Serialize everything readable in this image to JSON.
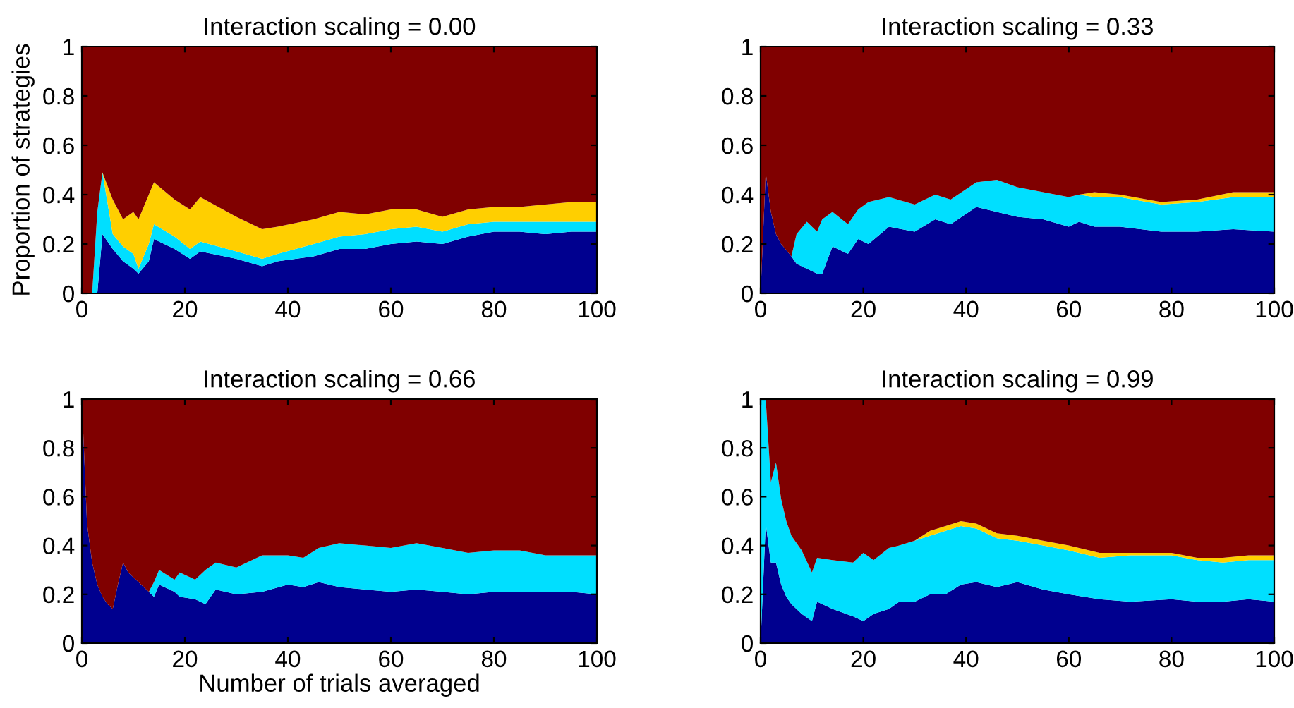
{
  "chart_data": [
    {
      "type": "area",
      "stacked": true,
      "title": "Interaction scaling = 0.00",
      "ylabel": "Proportion of strategies",
      "xlim": [
        0,
        100
      ],
      "ylim": [
        0,
        1
      ],
      "xticks": [
        0,
        20,
        40,
        60,
        80,
        100
      ],
      "yticks": [
        0,
        0.2,
        0.4,
        0.6,
        0.8,
        1
      ],
      "grid": false,
      "x": [
        0,
        2,
        3,
        4,
        6,
        8,
        10,
        11,
        13,
        14,
        18,
        21,
        23,
        30,
        35,
        38,
        45,
        50,
        55,
        60,
        65,
        70,
        75,
        80,
        85,
        90,
        95,
        100
      ],
      "series": [
        {
          "color": "#00008f",
          "values": [
            null,
            null,
            0,
            0.24,
            0.18,
            0.13,
            0.1,
            0.08,
            0.13,
            0.22,
            0.18,
            0.14,
            0.17,
            0.14,
            0.11,
            0.13,
            0.15,
            0.18,
            0.18,
            0.2,
            0.21,
            0.2,
            0.23,
            0.25,
            0.25,
            0.24,
            0.25,
            0.25
          ]
        },
        {
          "color": "#00dfff",
          "values": [
            null,
            0,
            0.33,
            0.25,
            0.06,
            0.06,
            0.06,
            0.02,
            0.07,
            0.06,
            0.05,
            0.04,
            0.04,
            0.03,
            0.03,
            0.03,
            0.05,
            0.05,
            0.06,
            0.06,
            0.06,
            0.05,
            0.05,
            0.04,
            0.04,
            0.05,
            0.04,
            0.04
          ]
        },
        {
          "color": "#ffcf00",
          "values": [
            null,
            null,
            null,
            0,
            0.14,
            0.11,
            0.17,
            0.2,
            0.2,
            0.17,
            0.15,
            0.16,
            0.18,
            0.14,
            0.12,
            0.11,
            0.1,
            0.1,
            0.08,
            0.08,
            0.07,
            0.06,
            0.06,
            0.06,
            0.06,
            0.07,
            0.08,
            0.08
          ]
        },
        {
          "color": "#800000",
          "values": [
            1,
            1,
            0.67,
            0.51,
            0.62,
            0.7,
            0.67,
            0.7,
            0.6,
            0.55,
            0.62,
            0.66,
            0.61,
            0.69,
            0.74,
            0.73,
            0.7,
            0.67,
            0.68,
            0.66,
            0.66,
            0.69,
            0.66,
            0.65,
            0.65,
            0.64,
            0.63,
            0.63
          ]
        }
      ]
    },
    {
      "type": "area",
      "stacked": true,
      "title": "Interaction scaling = 0.33",
      "xlim": [
        0,
        100
      ],
      "ylim": [
        0,
        1
      ],
      "xticks": [
        0,
        20,
        40,
        60,
        80,
        100
      ],
      "yticks": [
        0,
        0.2,
        0.4,
        0.6,
        0.8,
        1
      ],
      "grid": false,
      "x": [
        0,
        1,
        2,
        3,
        4,
        6,
        7,
        9,
        11,
        12,
        14,
        17,
        19,
        21,
        25,
        30,
        34,
        37,
        42,
        46,
        50,
        55,
        60,
        62,
        65,
        70,
        78,
        85,
        92,
        100
      ],
      "series": [
        {
          "color": "#00008f",
          "values": [
            0,
            0.49,
            0.33,
            0.24,
            0.2,
            0.15,
            0.12,
            0.1,
            0.08,
            0.08,
            0.19,
            0.16,
            0.22,
            0.2,
            0.27,
            0.25,
            0.3,
            0.28,
            0.35,
            0.33,
            0.31,
            0.3,
            0.27,
            0.29,
            0.27,
            0.27,
            0.25,
            0.25,
            0.26,
            0.25
          ]
        },
        {
          "color": "#00dfff",
          "values": [
            null,
            null,
            null,
            null,
            null,
            0,
            0.12,
            0.19,
            0.17,
            0.22,
            0.14,
            0.12,
            0.12,
            0.17,
            0.12,
            0.11,
            0.1,
            0.1,
            0.1,
            0.13,
            0.12,
            0.11,
            0.12,
            0.11,
            0.12,
            0.12,
            0.11,
            0.12,
            0.13,
            0.14
          ]
        },
        {
          "color": "#ffcf00",
          "values": [
            null,
            null,
            null,
            null,
            null,
            null,
            null,
            null,
            null,
            null,
            null,
            null,
            null,
            null,
            null,
            null,
            null,
            null,
            null,
            null,
            null,
            null,
            null,
            0,
            0.02,
            0.01,
            0.01,
            0.01,
            0.02,
            0.02
          ]
        },
        {
          "color": "#800000",
          "values": [
            1,
            0.51,
            0.67,
            0.76,
            0.8,
            0.85,
            0.76,
            0.71,
            0.75,
            0.7,
            0.67,
            0.72,
            0.66,
            0.63,
            0.61,
            0.64,
            0.6,
            0.62,
            0.55,
            0.54,
            0.57,
            0.59,
            0.61,
            0.6,
            0.59,
            0.6,
            0.63,
            0.62,
            0.59,
            0.59
          ]
        }
      ]
    },
    {
      "type": "area",
      "stacked": true,
      "title": "Interaction scaling = 0.66",
      "xlabel": "Number of trials averaged",
      "xlim": [
        0,
        100
      ],
      "ylim": [
        0,
        1
      ],
      "xticks": [
        0,
        20,
        40,
        60,
        80,
        100
      ],
      "yticks": [
        0,
        0.2,
        0.4,
        0.6,
        0.8,
        1
      ],
      "grid": false,
      "x": [
        0,
        1,
        2,
        3,
        4,
        5,
        6,
        7,
        8,
        9,
        11,
        13,
        14,
        15,
        18,
        19,
        22,
        24,
        26,
        30,
        35,
        40,
        43,
        46,
        50,
        55,
        60,
        65,
        70,
        75,
        80,
        85,
        90,
        95,
        100
      ],
      "series": [
        {
          "color": "#00008f",
          "values": [
            1,
            0.49,
            0.33,
            0.24,
            0.19,
            0.16,
            0.14,
            0.24,
            0.33,
            0.29,
            0.25,
            0.21,
            0.19,
            0.24,
            0.21,
            0.19,
            0.18,
            0.16,
            0.22,
            0.2,
            0.21,
            0.24,
            0.23,
            0.25,
            0.23,
            0.22,
            0.21,
            0.22,
            0.21,
            0.2,
            0.21,
            0.21,
            0.21,
            0.21,
            0.2
          ]
        },
        {
          "color": "#00dfff",
          "values": [
            null,
            null,
            null,
            null,
            null,
            null,
            null,
            null,
            null,
            null,
            null,
            0,
            0.06,
            0.06,
            0.05,
            0.1,
            0.08,
            0.14,
            0.11,
            0.11,
            0.15,
            0.12,
            0.12,
            0.14,
            0.18,
            0.18,
            0.18,
            0.19,
            0.18,
            0.17,
            0.17,
            0.17,
            0.15,
            0.15,
            0.16
          ]
        },
        {
          "color": "#800000",
          "values": [
            0,
            0.51,
            0.67,
            0.76,
            0.81,
            0.84,
            0.86,
            0.76,
            0.67,
            0.71,
            0.75,
            0.79,
            0.75,
            0.7,
            0.74,
            0.71,
            0.74,
            0.7,
            0.67,
            0.69,
            0.64,
            0.64,
            0.65,
            0.61,
            0.59,
            0.6,
            0.61,
            0.59,
            0.61,
            0.63,
            0.62,
            0.62,
            0.64,
            0.64,
            0.64
          ]
        }
      ]
    },
    {
      "type": "area",
      "stacked": true,
      "title": "Interaction scaling = 0.99",
      "xlim": [
        0,
        100
      ],
      "ylim": [
        0,
        1
      ],
      "xticks": [
        0,
        20,
        40,
        60,
        80,
        100
      ],
      "yticks": [
        0,
        0.2,
        0.4,
        0.6,
        0.8,
        1
      ],
      "grid": false,
      "x": [
        0,
        1,
        2,
        3,
        4,
        5,
        6,
        8,
        10,
        11,
        14,
        18,
        20,
        22,
        25,
        27,
        30,
        33,
        36,
        39,
        42,
        46,
        50,
        55,
        60,
        66,
        72,
        80,
        85,
        90,
        95,
        100
      ],
      "series": [
        {
          "color": "#00008f",
          "values": [
            0,
            0.49,
            0.33,
            0.33,
            0.24,
            0.19,
            0.16,
            0.12,
            0.09,
            0.17,
            0.14,
            0.11,
            0.09,
            0.12,
            0.14,
            0.17,
            0.17,
            0.2,
            0.2,
            0.24,
            0.25,
            0.23,
            0.25,
            0.22,
            0.2,
            0.18,
            0.17,
            0.18,
            0.17,
            0.17,
            0.18,
            0.17
          ]
        },
        {
          "color": "#00dfff",
          "values": [
            1,
            0.51,
            0.33,
            0.41,
            0.35,
            0.31,
            0.28,
            0.26,
            0.2,
            0.18,
            0.2,
            0.22,
            0.28,
            0.22,
            0.25,
            0.23,
            0.25,
            0.24,
            0.26,
            0.24,
            0.22,
            0.2,
            0.17,
            0.18,
            0.18,
            0.17,
            0.19,
            0.18,
            0.17,
            0.16,
            0.16,
            0.17
          ]
        },
        {
          "color": "#ffcf00",
          "values": [
            null,
            null,
            null,
            null,
            null,
            null,
            null,
            null,
            null,
            null,
            null,
            null,
            null,
            null,
            null,
            null,
            0,
            0.02,
            0.02,
            0.02,
            0.02,
            0.02,
            0.02,
            0.02,
            0.02,
            0.02,
            0.01,
            0.01,
            0.01,
            0.02,
            0.02,
            0.02
          ]
        },
        {
          "color": "#800000",
          "values": [
            null,
            0,
            0.34,
            0.26,
            0.41,
            0.5,
            0.56,
            0.62,
            0.71,
            0.65,
            0.66,
            0.67,
            0.63,
            0.66,
            0.61,
            0.6,
            0.58,
            0.54,
            0.52,
            0.5,
            0.51,
            0.55,
            0.56,
            0.58,
            0.6,
            0.63,
            0.63,
            0.63,
            0.65,
            0.65,
            0.64,
            0.64
          ]
        }
      ]
    }
  ]
}
